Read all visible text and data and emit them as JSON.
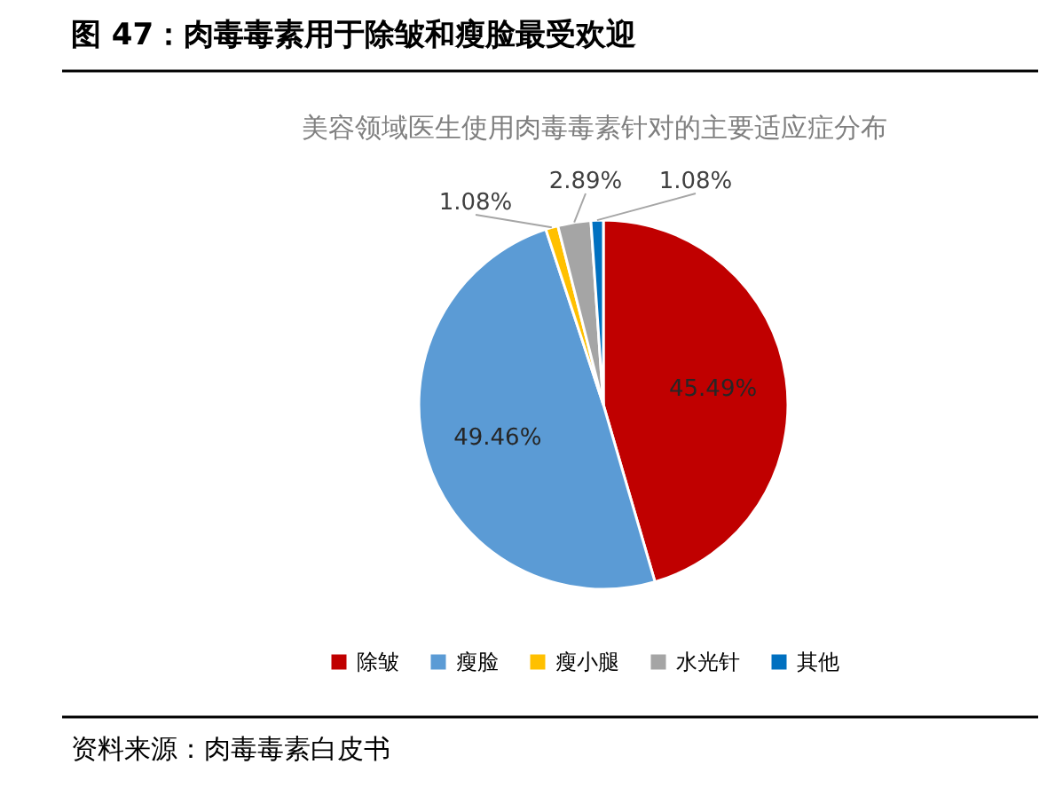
{
  "chart_data": {
    "type": "pie",
    "title": "图 47：肉毒毒素用于除皱和瘦脸最受欢迎",
    "subtitle": "美容领域医生使用肉毒毒素针对的主要适应症分布",
    "categories": [
      "除皱",
      "瘦脸",
      "瘦小腿",
      "水光针",
      "其他"
    ],
    "values": [
      45.49,
      49.46,
      1.08,
      2.89,
      1.08
    ],
    "colors": [
      "#c00000",
      "#5b9bd5",
      "#ffc000",
      "#a5a5a5",
      "#0070c0"
    ],
    "value_labels": [
      "45.49%",
      "49.46%",
      "1.08%",
      "2.89%",
      "1.08%"
    ],
    "legend": "bottom",
    "annotations": [
      "资料来源：肉毒毒素白皮书"
    ]
  }
}
